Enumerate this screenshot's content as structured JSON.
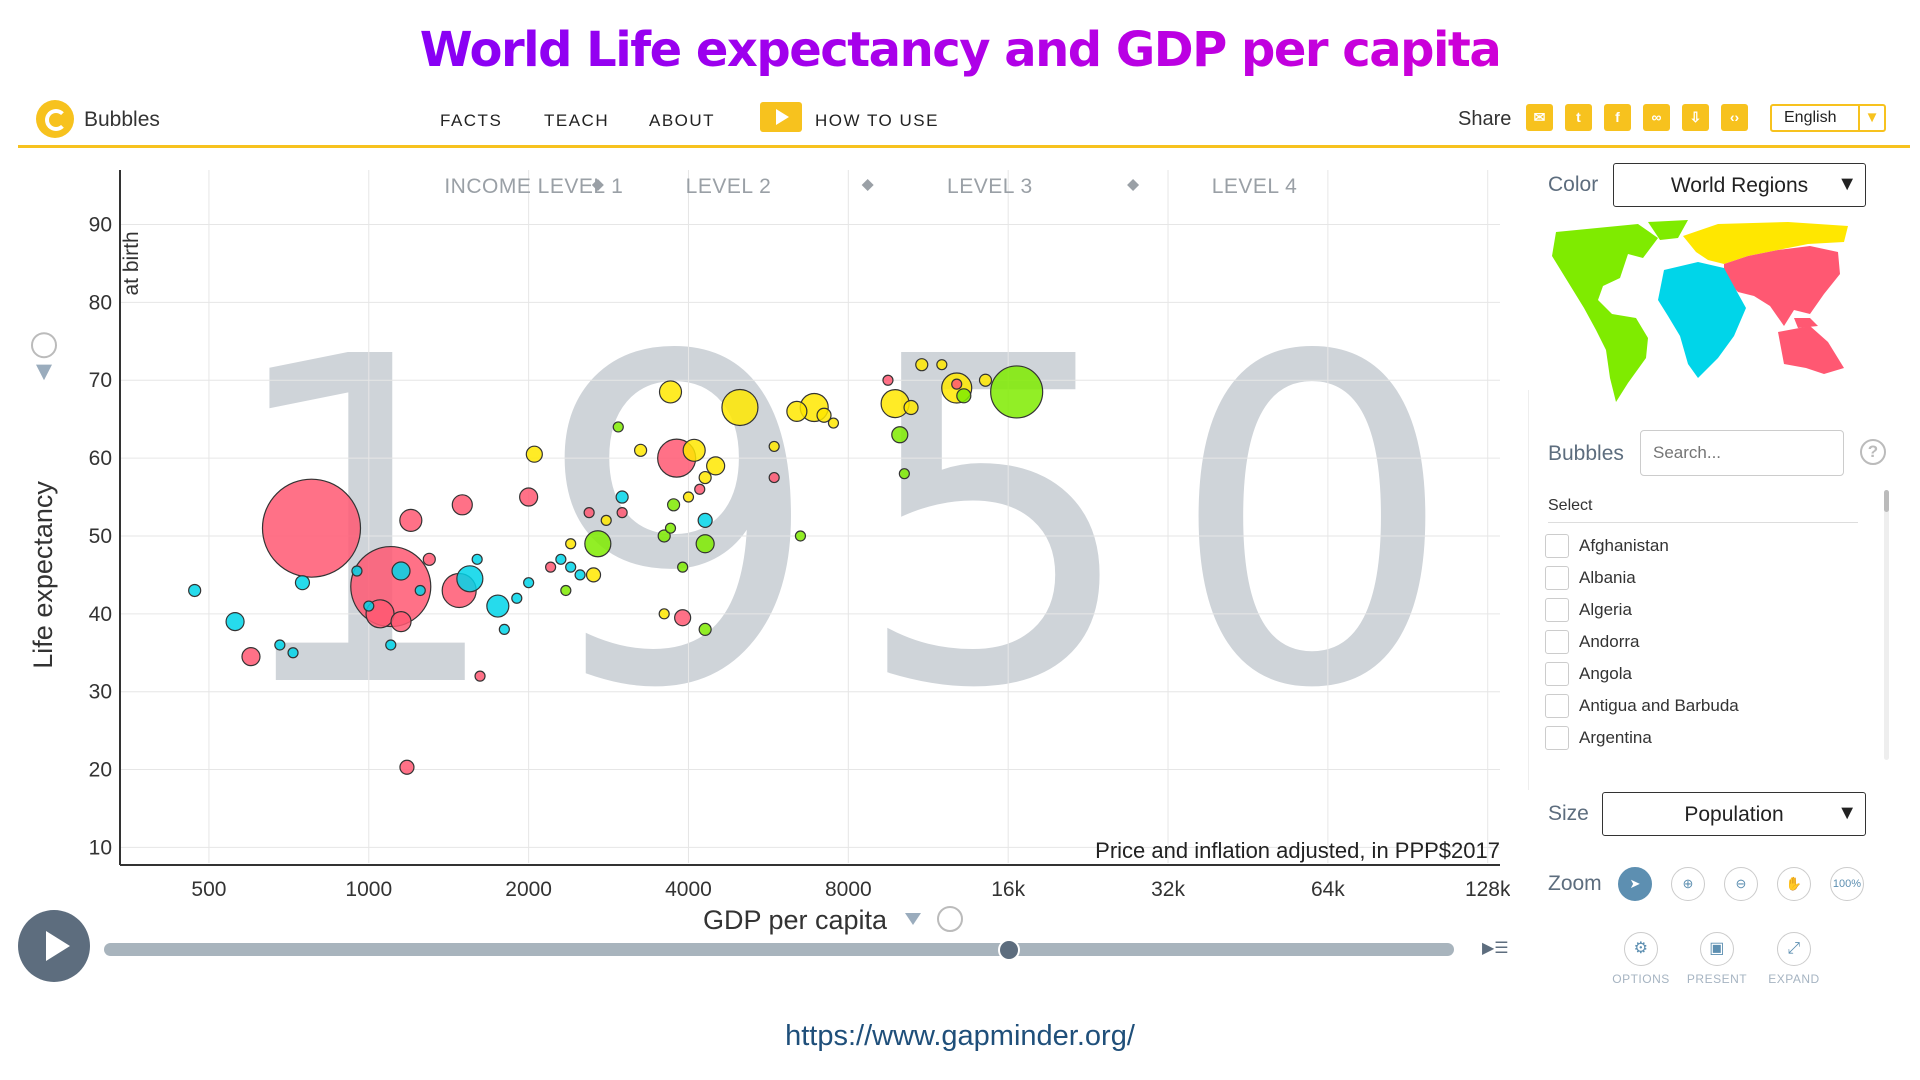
{
  "headline": "World Life expectancy and GDP per capita",
  "header": {
    "brand": "Bubbles",
    "nav": [
      "FACTS",
      "TEACH",
      "ABOUT",
      "HOW TO USE"
    ],
    "share_label": "Share",
    "share_icons": [
      "mail-icon",
      "twitter-icon",
      "facebook-icon",
      "link-icon",
      "download-icon",
      "code-icon"
    ],
    "language": "English"
  },
  "year": "1950",
  "sidebar": {
    "color_label": "Color",
    "color_value": "World Regions",
    "bubbles_label": "Bubbles",
    "search_placeholder": "Search...",
    "select_label": "Select",
    "countries": [
      "Afghanistan",
      "Albania",
      "Algeria",
      "Andorra",
      "Angola",
      "Antigua and Barbuda",
      "Argentina"
    ],
    "size_label": "Size",
    "size_value": "Population",
    "zoom_label": "Zoom",
    "zoom_100": "100%",
    "options": [
      "OPTIONS",
      "PRESENT",
      "EXPAND"
    ],
    "region_colors": {
      "americas": "#7feb00",
      "europe": "#ffe700",
      "asia": "#ff5872",
      "africa": "#00d5e9"
    }
  },
  "timeline": {
    "position": 0.67
  },
  "footer_url": "https://www.gapminder.org/",
  "chart_data": {
    "type": "scatter",
    "xlabel": "GDP per capita",
    "ylabel": "Life expectancy",
    "ylabel_top": "at birth",
    "x_scale": "log",
    "x_ticks": [
      500,
      1000,
      2000,
      4000,
      8000,
      16000,
      32000,
      64000,
      128000
    ],
    "x_tick_labels": [
      "500",
      "1000",
      "2000",
      "4000",
      "8000",
      "16k",
      "32k",
      "64k",
      "128k"
    ],
    "xlim": [
      340,
      135000
    ],
    "y_ticks": [
      10,
      20,
      30,
      40,
      50,
      60,
      70,
      80,
      90
    ],
    "ylim": [
      8,
      97
    ],
    "grid": true,
    "note": "Price and inflation adjusted, in PPP$2017",
    "income_levels": [
      "INCOME LEVEL 1",
      "LEVEL 2",
      "LEVEL 3",
      "LEVEL 4"
    ],
    "level_boundaries": [
      2700,
      8700,
      27500
    ],
    "points": [
      {
        "x": 780,
        "y": 51,
        "r": 49,
        "region": "asia"
      },
      {
        "x": 1100,
        "y": 43.5,
        "r": 40,
        "region": "asia"
      },
      {
        "x": 1050,
        "y": 40,
        "r": 14,
        "region": "asia"
      },
      {
        "x": 1150,
        "y": 39,
        "r": 10,
        "region": "asia"
      },
      {
        "x": 1200,
        "y": 52,
        "r": 11,
        "region": "asia"
      },
      {
        "x": 1500,
        "y": 54,
        "r": 10,
        "region": "asia"
      },
      {
        "x": 1480,
        "y": 43,
        "r": 17,
        "region": "asia"
      },
      {
        "x": 600,
        "y": 34.5,
        "r": 9,
        "region": "asia"
      },
      {
        "x": 1180,
        "y": 20.3,
        "r": 7,
        "region": "asia"
      },
      {
        "x": 2000,
        "y": 55,
        "r": 9,
        "region": "asia"
      },
      {
        "x": 3800,
        "y": 60,
        "r": 19,
        "region": "asia"
      },
      {
        "x": 3900,
        "y": 39.5,
        "r": 8,
        "region": "asia"
      },
      {
        "x": 1620,
        "y": 32,
        "r": 5,
        "region": "asia"
      },
      {
        "x": 5800,
        "y": 57.5,
        "r": 5,
        "region": "asia"
      },
      {
        "x": 9500,
        "y": 70,
        "r": 5,
        "region": "asia"
      },
      {
        "x": 3000,
        "y": 53,
        "r": 5,
        "region": "asia"
      },
      {
        "x": 2600,
        "y": 53,
        "r": 5,
        "region": "asia"
      },
      {
        "x": 1300,
        "y": 47,
        "r": 6,
        "region": "asia"
      },
      {
        "x": 2200,
        "y": 46,
        "r": 5,
        "region": "asia"
      },
      {
        "x": 4200,
        "y": 56,
        "r": 5,
        "region": "asia"
      },
      {
        "x": 12800,
        "y": 69.5,
        "r": 5,
        "region": "asia"
      },
      {
        "x": 470,
        "y": 43,
        "r": 6,
        "region": "africa"
      },
      {
        "x": 560,
        "y": 39,
        "r": 9,
        "region": "africa"
      },
      {
        "x": 750,
        "y": 44,
        "r": 7,
        "region": "africa"
      },
      {
        "x": 1150,
        "y": 45.5,
        "r": 9,
        "region": "africa"
      },
      {
        "x": 1550,
        "y": 44.5,
        "r": 13,
        "region": "africa"
      },
      {
        "x": 1750,
        "y": 41,
        "r": 11,
        "region": "africa"
      },
      {
        "x": 680,
        "y": 36,
        "r": 5,
        "region": "africa"
      },
      {
        "x": 720,
        "y": 35,
        "r": 5,
        "region": "africa"
      },
      {
        "x": 1000,
        "y": 41,
        "r": 5,
        "region": "africa"
      },
      {
        "x": 1100,
        "y": 36,
        "r": 5,
        "region": "africa"
      },
      {
        "x": 1250,
        "y": 43,
        "r": 5,
        "region": "africa"
      },
      {
        "x": 1600,
        "y": 47,
        "r": 5,
        "region": "africa"
      },
      {
        "x": 2000,
        "y": 44,
        "r": 5,
        "region": "africa"
      },
      {
        "x": 1900,
        "y": 42,
        "r": 5,
        "region": "africa"
      },
      {
        "x": 2400,
        "y": 46,
        "r": 5,
        "region": "africa"
      },
      {
        "x": 2500,
        "y": 45,
        "r": 5,
        "region": "africa"
      },
      {
        "x": 3000,
        "y": 55,
        "r": 6,
        "region": "africa"
      },
      {
        "x": 4300,
        "y": 52,
        "r": 7,
        "region": "africa"
      },
      {
        "x": 950,
        "y": 45.5,
        "r": 5,
        "region": "africa"
      },
      {
        "x": 1800,
        "y": 38,
        "r": 5,
        "region": "africa"
      },
      {
        "x": 2300,
        "y": 47,
        "r": 5,
        "region": "africa"
      },
      {
        "x": 2700,
        "y": 49,
        "r": 13,
        "region": "americas"
      },
      {
        "x": 4300,
        "y": 49,
        "r": 9,
        "region": "americas"
      },
      {
        "x": 3750,
        "y": 54,
        "r": 6,
        "region": "americas"
      },
      {
        "x": 2950,
        "y": 64,
        "r": 5,
        "region": "americas"
      },
      {
        "x": 6500,
        "y": 50,
        "r": 5,
        "region": "americas"
      },
      {
        "x": 10000,
        "y": 63,
        "r": 8,
        "region": "americas"
      },
      {
        "x": 10200,
        "y": 58,
        "r": 5,
        "region": "americas"
      },
      {
        "x": 16600,
        "y": 68.5,
        "r": 26,
        "region": "americas"
      },
      {
        "x": 13200,
        "y": 68,
        "r": 7,
        "region": "americas"
      },
      {
        "x": 4300,
        "y": 38,
        "r": 6,
        "region": "americas"
      },
      {
        "x": 3900,
        "y": 46,
        "r": 5,
        "region": "americas"
      },
      {
        "x": 2350,
        "y": 43,
        "r": 5,
        "region": "americas"
      },
      {
        "x": 3700,
        "y": 51,
        "r": 5,
        "region": "americas"
      },
      {
        "x": 3600,
        "y": 50,
        "r": 6,
        "region": "americas"
      },
      {
        "x": 2650,
        "y": 45,
        "r": 7,
        "region": "europe"
      },
      {
        "x": 3700,
        "y": 68.5,
        "r": 11,
        "region": "europe"
      },
      {
        "x": 5000,
        "y": 66.5,
        "r": 18,
        "region": "europe"
      },
      {
        "x": 6900,
        "y": 66.5,
        "r": 14,
        "region": "europe"
      },
      {
        "x": 6400,
        "y": 66,
        "r": 10,
        "region": "europe"
      },
      {
        "x": 4100,
        "y": 61,
        "r": 11,
        "region": "europe"
      },
      {
        "x": 4500,
        "y": 59,
        "r": 9,
        "region": "europe"
      },
      {
        "x": 9800,
        "y": 67,
        "r": 14,
        "region": "europe"
      },
      {
        "x": 10500,
        "y": 66.5,
        "r": 7,
        "region": "europe"
      },
      {
        "x": 12800,
        "y": 69,
        "r": 15,
        "region": "europe"
      },
      {
        "x": 14500,
        "y": 70,
        "r": 6,
        "region": "europe"
      },
      {
        "x": 2050,
        "y": 60.5,
        "r": 8,
        "region": "europe"
      },
      {
        "x": 4300,
        "y": 57.5,
        "r": 6,
        "region": "europe"
      },
      {
        "x": 11000,
        "y": 72,
        "r": 6,
        "region": "europe"
      },
      {
        "x": 12000,
        "y": 72,
        "r": 5,
        "region": "europe"
      },
      {
        "x": 3250,
        "y": 61,
        "r": 6,
        "region": "europe"
      },
      {
        "x": 3600,
        "y": 40,
        "r": 5,
        "region": "europe"
      },
      {
        "x": 2800,
        "y": 52,
        "r": 5,
        "region": "europe"
      },
      {
        "x": 7500,
        "y": 64.5,
        "r": 5,
        "region": "europe"
      },
      {
        "x": 5800,
        "y": 61.5,
        "r": 5,
        "region": "europe"
      },
      {
        "x": 4000,
        "y": 55,
        "r": 5,
        "region": "europe"
      },
      {
        "x": 7200,
        "y": 65.5,
        "r": 7,
        "region": "europe"
      },
      {
        "x": 2400,
        "y": 49,
        "r": 5,
        "region": "europe"
      }
    ]
  }
}
